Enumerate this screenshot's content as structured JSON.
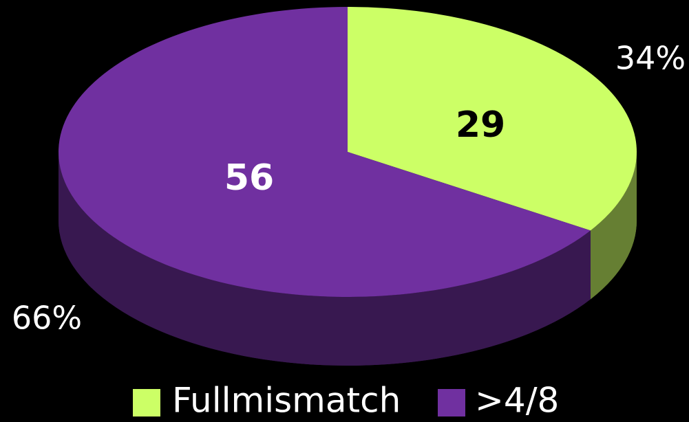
{
  "chart_data": {
    "type": "pie",
    "categories": [
      "Fullmismatch",
      ">4/8"
    ],
    "values": [
      29,
      56
    ],
    "percent_labels": [
      "34%",
      "66%"
    ],
    "colors": [
      "#ccff66",
      "#7030a0"
    ],
    "legend": "bottom"
  }
}
